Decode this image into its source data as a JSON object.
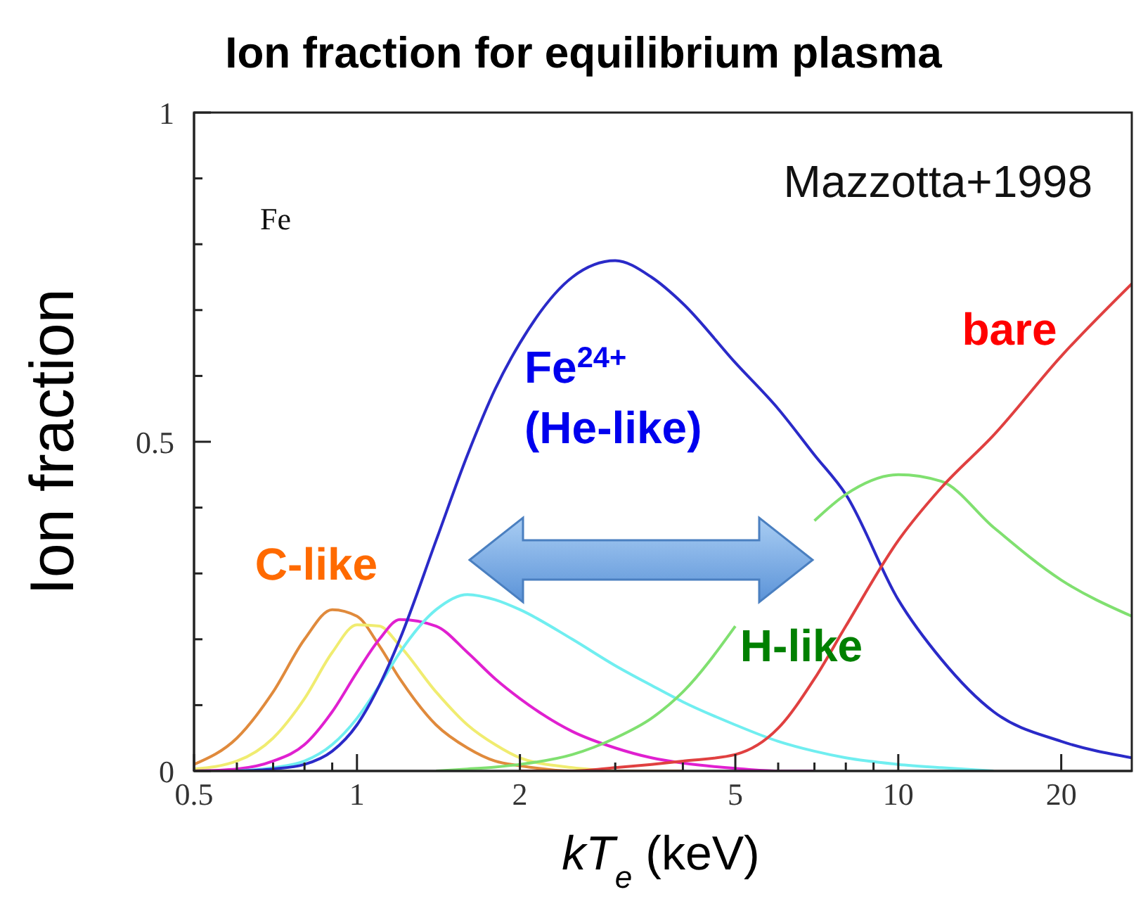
{
  "chart_data": {
    "type": "line",
    "title": "Ion fraction for equilibrium plasma",
    "xlabel": "kT$_{e}$ (keV)",
    "ylabel": "Ion fraction",
    "log": "x",
    "grid": false,
    "legend": false,
    "marker": "none",
    "line_style": "solid",
    "xlim": [
      0.5,
      27
    ],
    "ylim": [
      0,
      1
    ],
    "xticks": [
      0.5,
      {
        "value": 0.6,
        "label": null
      },
      {
        "value": 0.7,
        "label": null
      },
      {
        "value": 0.8,
        "label": null
      },
      {
        "value": 0.9,
        "label": null
      },
      1,
      2,
      {
        "value": 3,
        "label": null
      },
      {
        "value": 4,
        "label": null
      },
      5,
      {
        "value": 6,
        "label": null
      },
      {
        "value": 7,
        "label": null
      },
      {
        "value": 8,
        "label": null
      },
      {
        "value": 9,
        "label": null
      },
      10,
      20
    ],
    "yticks": [
      0,
      {
        "value": 0.1,
        "label": null
      },
      {
        "value": 0.2,
        "label": null
      },
      {
        "value": 0.3,
        "label": null
      },
      {
        "value": 0.4,
        "label": null
      },
      0.5,
      {
        "value": 0.6,
        "label": null
      },
      {
        "value": 0.7,
        "label": null
      },
      {
        "value": 0.8,
        "label": null
      },
      {
        "value": 0.9,
        "label": null
      },
      1
    ],
    "x": [
      0.5,
      0.6,
      0.7,
      0.8,
      0.9,
      1,
      1.1,
      1.2,
      1.4,
      1.6,
      1.8,
      2,
      2.5,
      3,
      3.5,
      4,
      5,
      6,
      7,
      8,
      10,
      12,
      15,
      20,
      27
    ],
    "series": [
      {
        "name": "C-like",
        "color": "#e08a3c",
        "values": [
          0.01,
          0.05,
          0.12,
          0.2,
          0.245,
          0.235,
          0.19,
          0.14,
          0.07,
          0.035,
          0.015,
          0.008,
          0,
          0,
          0,
          0,
          null,
          null,
          null,
          null,
          null,
          null,
          null,
          null,
          null
        ]
      },
      {
        "color": "#f0ec70",
        "values": [
          0.003,
          0.015,
          0.05,
          0.11,
          0.18,
          0.222,
          0.22,
          0.19,
          0.12,
          0.07,
          0.04,
          0.02,
          0.005,
          0,
          null,
          null,
          null,
          null,
          null,
          null,
          null,
          null,
          null,
          null,
          null
        ]
      },
      {
        "color": "#e020d0",
        "values": [
          0,
          0.003,
          0.015,
          0.04,
          0.09,
          0.15,
          0.2,
          0.23,
          0.22,
          0.18,
          0.14,
          0.11,
          0.06,
          0.035,
          0.02,
          0.012,
          0.004,
          0,
          0,
          null,
          null,
          null,
          null,
          null,
          null
        ]
      },
      {
        "color": "#70eef0",
        "values": [
          null,
          0,
          0.005,
          0.015,
          0.04,
          0.08,
          0.13,
          0.18,
          0.245,
          0.268,
          0.26,
          0.245,
          0.2,
          0.16,
          0.13,
          0.105,
          0.07,
          0.045,
          0.03,
          0.02,
          0.01,
          0.005,
          0,
          null,
          null
        ]
      },
      {
        "name": "Fe$^{24+}$ (He-like)",
        "color": "#2a2ac8",
        "values": [
          null,
          0,
          0.003,
          0.01,
          0.03,
          0.07,
          0.13,
          0.2,
          0.35,
          0.48,
          0.58,
          0.65,
          0.75,
          0.775,
          0.75,
          0.71,
          0.62,
          0.55,
          0.48,
          0.42,
          0.26,
          0.17,
          0.09,
          0.045,
          0.02
        ]
      },
      {
        "name": "H-like",
        "color": "#80e070",
        "values": [
          null,
          null,
          null,
          null,
          null,
          null,
          null,
          null,
          0,
          0.003,
          0.006,
          0.01,
          0.025,
          0.05,
          0.08,
          0.12,
          0.22,
          null,
          0.38,
          0.42,
          0.45,
          0.44,
          0.37,
          0.29,
          0.235
        ]
      },
      {
        "name": "bare",
        "color": "#e04040",
        "values": [
          null,
          null,
          null,
          null,
          null,
          null,
          null,
          null,
          null,
          null,
          null,
          0,
          0,
          0.005,
          0.01,
          0.015,
          0.025,
          0.065,
          0.14,
          0.22,
          0.35,
          0.43,
          0.51,
          0.63,
          0.74
        ]
      }
    ],
    "annotations": [
      "Fe",
      "Mazzotta+1998"
    ]
  }
}
